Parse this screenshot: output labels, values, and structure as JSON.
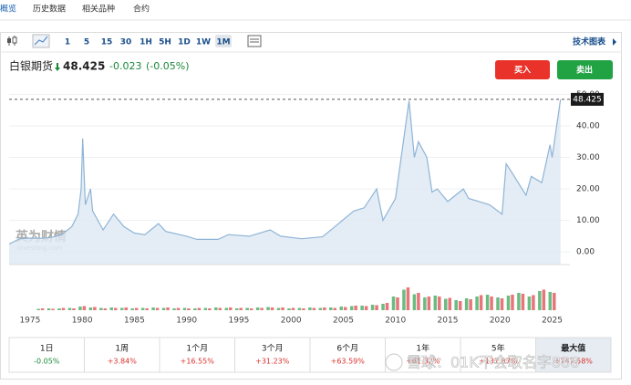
{
  "tabs": [
    "概览",
    "历史数据",
    "相关品种",
    "合约"
  ],
  "toolbar": {
    "intervals": [
      "1",
      "5",
      "15",
      "30",
      "1H",
      "5H",
      "1D",
      "1W",
      "1M"
    ],
    "active": "1M",
    "advanced": "技术图表"
  },
  "header": {
    "name": "白银期货",
    "change": "-0.023",
    "change_pct": "(-0.05%)",
    "buy": "买入",
    "sell": "卖出"
  },
  "chart": {
    "type": "line",
    "last": 48.425,
    "ylim": [
      -4,
      51
    ],
    "yticks": [
      {
        "value": 0,
        "label": "0.00"
      },
      {
        "value": 10,
        "label": "10.00"
      },
      {
        "value": 20,
        "label": "20.00"
      },
      {
        "value": 30,
        "label": "30.00"
      },
      {
        "value": 40,
        "label": "40.00"
      },
      {
        "value": 50,
        "label": "50.00"
      }
    ],
    "xlim": [
      1973,
      2026.7
    ],
    "xticks": [
      1975,
      1980,
      1985,
      1990,
      1995,
      2000,
      2005,
      2010,
      2015,
      2020,
      2025
    ],
    "price": {
      "color": "#8fb4d6",
      "x": [
        1973,
        1974,
        1975,
        1976,
        1977,
        1978,
        1979,
        1979.6,
        1979.9,
        1980.05,
        1980.3,
        1980.8,
        1981,
        1982,
        1983,
        1984,
        1985,
        1986,
        1987.3,
        1988,
        1990,
        1991,
        1993,
        1994,
        1996,
        1998,
        1999,
        2001,
        2003,
        2004,
        2006,
        2007,
        2008.2,
        2008.8,
        2010,
        2011.3,
        2011.8,
        2012.2,
        2013,
        2013.5,
        2014,
        2015,
        2016.5,
        2017,
        2019,
        2020.2,
        2020.6,
        2021,
        2022.5,
        2023,
        2024,
        2024.8,
        2025,
        2025.8
      ],
      "values": [
        2.5,
        4.2,
        4.4,
        4.3,
        4.6,
        5.4,
        8,
        12,
        20,
        36,
        15,
        20,
        13,
        7,
        12,
        8,
        6,
        5.5,
        9,
        6.5,
        5,
        4,
        4,
        5.5,
        5,
        7,
        5,
        4.2,
        4.8,
        7.5,
        13,
        14,
        20,
        10,
        17,
        48,
        30,
        35,
        30,
        19,
        20,
        16,
        20,
        17,
        15,
        12,
        28,
        26,
        18,
        24,
        22,
        34,
        30,
        48.425
      ]
    },
    "volume": {
      "ylim": [
        0,
        100
      ],
      "up_color": "#3aa657",
      "down_color": "#e0474c",
      "x": [
        1976,
        1977,
        1978,
        1979,
        1980,
        1981,
        1982,
        1983,
        1984,
        1985,
        1986,
        1987,
        1988,
        1989,
        1990,
        1991,
        1992,
        1993,
        1994,
        1995,
        1996,
        1997,
        1998,
        1999,
        2000,
        2001,
        2002,
        2003,
        2004,
        2005,
        2006,
        2007,
        2008,
        2009,
        2010,
        2011,
        2012,
        2013,
        2014,
        2015,
        2016,
        2017,
        2018,
        2019,
        2020,
        2021,
        2022,
        2023,
        2024,
        2025
      ],
      "up_values": [
        3,
        4,
        4,
        5,
        8,
        6,
        5,
        6,
        5,
        4,
        5,
        6,
        5,
        4,
        5,
        4,
        5,
        6,
        5,
        4,
        5,
        6,
        7,
        5,
        4,
        5,
        6,
        5,
        6,
        8,
        9,
        10,
        12,
        14,
        30,
        45,
        35,
        28,
        32,
        25,
        22,
        26,
        30,
        34,
        28,
        32,
        38,
        30,
        42,
        40
      ],
      "down_values": [
        4,
        3,
        5,
        4,
        9,
        7,
        4,
        5,
        6,
        5,
        4,
        5,
        6,
        5,
        4,
        5,
        4,
        5,
        6,
        5,
        4,
        5,
        6,
        6,
        5,
        4,
        5,
        6,
        5,
        7,
        10,
        9,
        11,
        16,
        28,
        50,
        38,
        30,
        30,
        27,
        20,
        24,
        33,
        30,
        26,
        34,
        36,
        33,
        45,
        38
      ]
    }
  },
  "performance": [
    {
      "label": "1日",
      "value": "-0.05%"
    },
    {
      "label": "1周",
      "value": "+3.84%"
    },
    {
      "label": "1个月",
      "value": "+16.55%"
    },
    {
      "label": "3个月",
      "value": "+31.23%"
    },
    {
      "label": "6个月",
      "value": "+63.59%"
    },
    {
      "label": "1年",
      "value": "+61.32%"
    },
    {
      "label": "5年",
      "value": "+137.87%"
    },
    {
      "label": "最大值",
      "value": "+747.58%"
    }
  ],
  "watermark": "雪球：01K不会取名字888"
}
